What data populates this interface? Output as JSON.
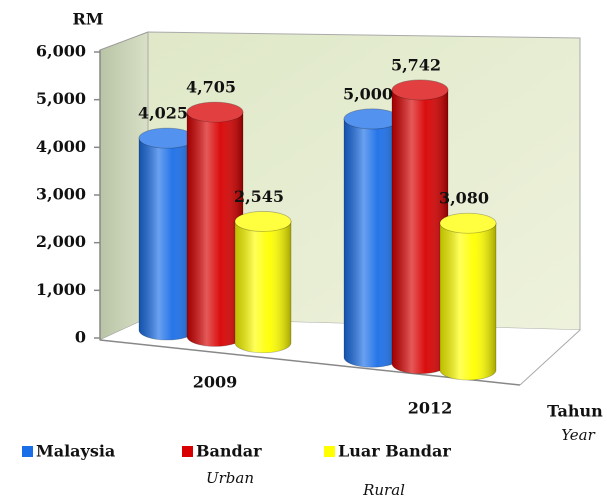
{
  "chart_data": {
    "type": "bar3d",
    "y_label": "RM",
    "x_label": "Tahun",
    "x_label_sub": "Year",
    "categories": [
      "2009",
      "2012"
    ],
    "series": [
      {
        "name": "Malaysia",
        "color": "#1a6ee8",
        "values": [
          4025,
          5000
        ],
        "value_labels": [
          "4,025",
          "5,000"
        ]
      },
      {
        "name": "Bandar",
        "name_en": "Urban",
        "color": "#d80000",
        "values": [
          4705,
          5742
        ],
        "value_labels": [
          "4,705",
          "5,742"
        ]
      },
      {
        "name": "Luar Bandar",
        "name_en": "Rural",
        "color": "#ffff00",
        "values": [
          2545,
          3080
        ],
        "value_labels": [
          "2,545",
          "3,080"
        ]
      }
    ],
    "ylim": [
      0,
      6000
    ],
    "yticks": [
      0,
      {
        "value": 1000,
        "label": "1,000"
      },
      {
        "value": 2000,
        "label": "2,000"
      },
      {
        "value": 3000,
        "label": "3,000"
      },
      {
        "value": 4000,
        "label": "4,000"
      },
      {
        "value": 5000,
        "label": "5,000"
      },
      {
        "value": 6000,
        "label": "6,000"
      }
    ]
  }
}
